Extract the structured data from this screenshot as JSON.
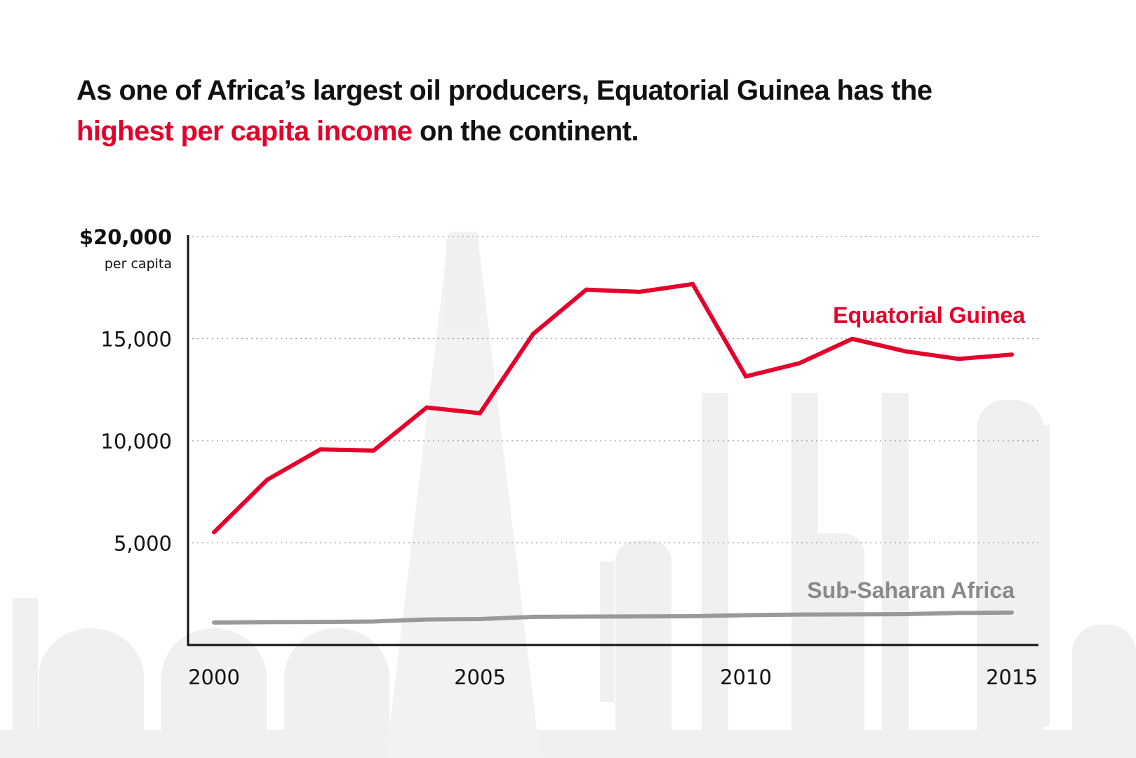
{
  "title": {
    "part1": "As one of Africa’s largest oil producers, Equatorial Guinea has the",
    "highlight": "highest per capita income",
    "part2": " on the continent."
  },
  "colors": {
    "highlight": "#e4002b",
    "equatorial_guinea": "#e4002b",
    "sub_saharan_africa": "#999999",
    "background_illustration": "#f0f0f0"
  },
  "background_illustration": "oil-refinery-silhouette",
  "chart_data": {
    "type": "line",
    "x": [
      2000,
      2001,
      2002,
      2003,
      2004,
      2005,
      2006,
      2007,
      2008,
      2009,
      2010,
      2011,
      2012,
      2013,
      2014,
      2015
    ],
    "series": [
      {
        "name": "Equatorial Guinea",
        "values": [
          5520,
          8090,
          9580,
          9520,
          11630,
          11350,
          15230,
          17400,
          17290,
          17670,
          13150,
          13790,
          14990,
          14380,
          14010,
          14220
        ]
      },
      {
        "name": "Sub-Saharan Africa",
        "values": [
          1100,
          1120,
          1130,
          1150,
          1250,
          1270,
          1380,
          1390,
          1400,
          1410,
          1460,
          1490,
          1500,
          1510,
          1570,
          1590
        ]
      }
    ],
    "ylim": [
      0,
      20000
    ],
    "xlim": [
      2000,
      2015
    ],
    "y_ticks": [
      {
        "value": 20000,
        "label": "$20,000"
      },
      {
        "value": 15000,
        "label": "15,000"
      },
      {
        "value": 10000,
        "label": "10,000"
      },
      {
        "value": 5000,
        "label": "5,000"
      }
    ],
    "y_unit_label": "per capita",
    "x_ticks": [
      {
        "value": 2000,
        "label": "2000"
      },
      {
        "value": 2005,
        "label": "2005"
      },
      {
        "value": 2010,
        "label": "2010"
      },
      {
        "value": 2015,
        "label": "2015"
      }
    ],
    "grid": "horizontal dotted",
    "legend": "direct labels at right"
  }
}
